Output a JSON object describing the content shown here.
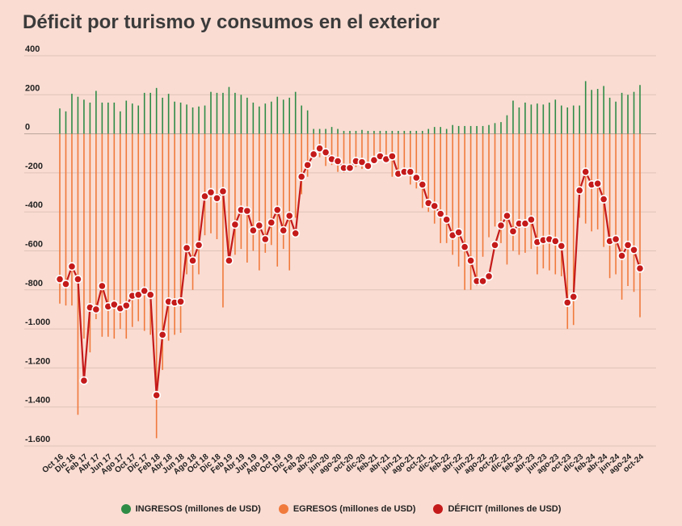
{
  "chart_data": {
    "type": "bar",
    "title": "Déficit por turismo y consumos en el exterior",
    "xlabel": "",
    "ylabel": "",
    "ylim": [
      -1600,
      400
    ],
    "yticks": [
      400,
      200,
      0,
      -200,
      -400,
      -600,
      -800,
      -1000,
      -1200,
      -1400,
      -1600
    ],
    "ytick_labels": [
      "400",
      "200",
      "0",
      "-200",
      "-400",
      "-600",
      "-800",
      "-1.000",
      "-1.200",
      "-1.400",
      "-1.600"
    ],
    "x": [
      "Oct 16",
      "Nov 16",
      "Dic 16",
      "Ene 17",
      "Feb 17",
      "Mar 17",
      "Abr 17",
      "May 17",
      "Jun 17",
      "Jul 17",
      "Ago 17",
      "Sep 17",
      "Oct 17",
      "Nov 17",
      "Dic 17",
      "Ene 18",
      "Feb 18",
      "Mar 18",
      "Abr 18",
      "May 18",
      "Jun 18",
      "Jul 18",
      "Ago 18",
      "Sep 18",
      "Oct 18",
      "Nov 18",
      "Dic 18",
      "Ene 19",
      "Feb 19",
      "Mar 19",
      "Abr 19",
      "May 19",
      "Jun 19",
      "Jul 19",
      "Ago 19",
      "Sep 19",
      "Oct 19",
      "Nov 19",
      "Dic 19",
      "Ene 20",
      "Feb 20",
      "mar-20",
      "abr-20",
      "may-20",
      "jun-20",
      "jul-20",
      "ago-20",
      "sep-20",
      "oct-20",
      "nov-20",
      "dic-20",
      "ene-21",
      "feb-21",
      "mar-21",
      "abr-21",
      "may-21",
      "jun-21",
      "jul-21",
      "ago-21",
      "sep-21",
      "oct-21",
      "nov-21",
      "dic-21",
      "ene-22",
      "feb-22",
      "mar-22",
      "abr-22",
      "may-22",
      "jun-22",
      "jul-22",
      "ago-22",
      "sep-22",
      "oct-22",
      "nov-22",
      "dic-22",
      "ene-23",
      "feb-23",
      "mar-23",
      "abr-23",
      "may-23",
      "jun-23",
      "jul-23",
      "ago-23",
      "sep-23",
      "oct-23",
      "nov-23",
      "dic-23",
      "ene-24",
      "feb-24",
      "mar-24",
      "abr-24",
      "may-24",
      "jun-24",
      "jul-24",
      "ago-24",
      "sep-24",
      "oct-24"
    ],
    "x_tick_labels": [
      "Oct 16",
      "Dic 16",
      "Feb 17",
      "Abr 17",
      "Jun 17",
      "Ago 17",
      "Oct 17",
      "Dic 17",
      "Feb 18",
      "Abr 18",
      "Jun 18",
      "Ago 18",
      "Oct 18",
      "Dic 18",
      "Feb 19",
      "Abr 19",
      "Jun 19",
      "Ago 19",
      "Oct 19",
      "Dic 19",
      "Feb 20",
      "abr-20",
      "jun-20",
      "ago-20",
      "oct-20",
      "dic-20",
      "feb-21",
      "abr-21",
      "jun-21",
      "ago-21",
      "oct-21",
      "dic-21",
      "feb-22",
      "abr-22",
      "jun-22",
      "ago-22",
      "oct-22",
      "dic-22",
      "feb-23",
      "abr-23",
      "jun-23",
      "ago-23",
      "oct-23",
      "dic-23",
      "feb-24",
      "abr-24",
      "jun-24",
      "ago-24",
      "oct-24"
    ],
    "series": [
      {
        "name": "INGRESOS (millones de USD)",
        "type": "bar",
        "color": "#2e8b46",
        "values": [
          130,
          115,
          205,
          190,
          175,
          160,
          220,
          160,
          160,
          160,
          115,
          170,
          155,
          145,
          210,
          210,
          235,
          185,
          205,
          165,
          160,
          150,
          135,
          140,
          145,
          215,
          210,
          210,
          240,
          210,
          200,
          185,
          160,
          140,
          155,
          165,
          190,
          175,
          185,
          215,
          145,
          120,
          25,
          25,
          25,
          35,
          25,
          15,
          15,
          15,
          20,
          15,
          15,
          15,
          15,
          15,
          15,
          15,
          15,
          15,
          15,
          25,
          35,
          35,
          25,
          45,
          40,
          40,
          40,
          40,
          40,
          45,
          55,
          60,
          95,
          170,
          135,
          160,
          150,
          155,
          150,
          160,
          175,
          145,
          135,
          145,
          145,
          270,
          225,
          230,
          245,
          185,
          165,
          210,
          200,
          215,
          250
        ]
      },
      {
        "name": "EGRESOS (millones de USD)",
        "type": "bar",
        "color": "#f07a3c",
        "values": [
          -870,
          -880,
          -880,
          -1440,
          -1050,
          -1120,
          -950,
          -1040,
          -1040,
          -1050,
          -1000,
          -1050,
          -990,
          -960,
          -1010,
          -1030,
          -1560,
          -1210,
          -1060,
          -1030,
          -1020,
          -720,
          -800,
          -720,
          -520,
          -510,
          -540,
          -890,
          -660,
          -620,
          -590,
          -660,
          -600,
          -700,
          -610,
          -570,
          -680,
          -590,
          -700,
          -430,
          -310,
          -220,
          -110,
          -120,
          -165,
          -160,
          -195,
          -200,
          -160,
          -170,
          -180,
          -155,
          -145,
          -135,
          -130,
          -220,
          -210,
          -210,
          -260,
          -280,
          -380,
          -400,
          -460,
          -560,
          -560,
          -620,
          -680,
          -800,
          -800,
          -780,
          -630,
          -530,
          -475,
          -560,
          -670,
          -600,
          -620,
          -610,
          -590,
          -720,
          -690,
          -700,
          -720,
          -730,
          -1000,
          -980,
          -430,
          -460,
          -500,
          -490,
          -580,
          -740,
          -720,
          -850,
          -780,
          -810,
          -940
        ]
      },
      {
        "name": "DÉFICIT (millones de USD)",
        "type": "line",
        "color": "#c41a1a",
        "values": [
          -745,
          -770,
          -680,
          -745,
          -1265,
          -890,
          -900,
          -780,
          -885,
          -875,
          -895,
          -880,
          -830,
          -825,
          -805,
          -825,
          -1340,
          -1030,
          -860,
          -865,
          -860,
          -585,
          -650,
          -570,
          -320,
          -300,
          -330,
          -295,
          -650,
          -465,
          -390,
          -395,
          -495,
          -470,
          -540,
          -455,
          -390,
          -495,
          -420,
          -510,
          -220,
          -160,
          -105,
          -75,
          -95,
          -130,
          -140,
          -175,
          -175,
          -140,
          -145,
          -165,
          -135,
          -115,
          -130,
          -115,
          -205,
          -195,
          -195,
          -225,
          -260,
          -355,
          -370,
          -410,
          -440,
          -520,
          -505,
          -580,
          -650,
          -755,
          -755,
          -730,
          -570,
          -470,
          -420,
          -500,
          -460,
          -460,
          -440,
          -555,
          -545,
          -540,
          -550,
          -575,
          -865,
          -835,
          -290,
          -195,
          -260,
          -255,
          -335,
          -550,
          -540,
          -625,
          -570,
          -595,
          -690
        ]
      }
    ],
    "legend_position": "bottom",
    "grid": true
  },
  "legend": [
    {
      "label": "INGRESOS (millones de USD)",
      "color": "#2e8b46"
    },
    {
      "label": "EGRESOS (millones de USD)",
      "color": "#f07a3c"
    },
    {
      "label": "DÉFICIT (millones de USD)",
      "color": "#c41a1a"
    }
  ]
}
